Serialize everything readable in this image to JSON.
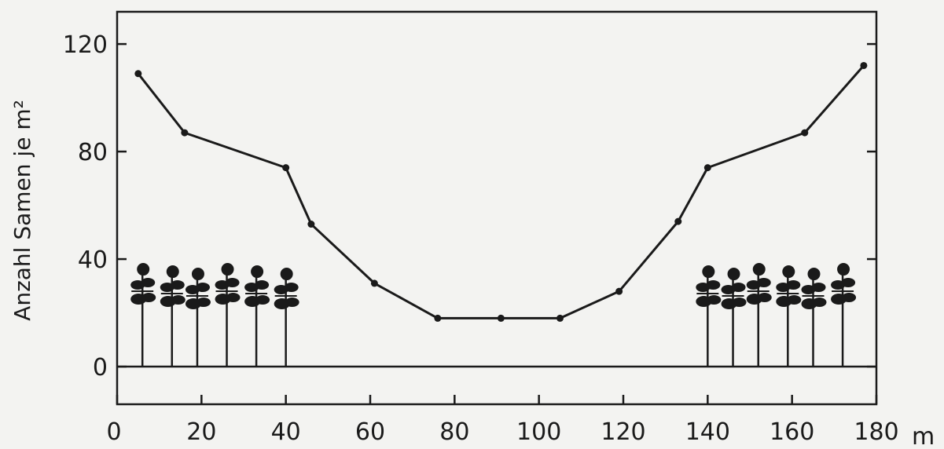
{
  "chart_data": {
    "type": "line",
    "title": "",
    "xlabel": "",
    "x_unit": "m",
    "ylabel": "Anzahl Samen je m²",
    "xlim": [
      0,
      180
    ],
    "ylim": [
      -14,
      132
    ],
    "x_ticks": [
      "0",
      "20",
      "40",
      "60",
      "80",
      "100",
      "120",
      "140",
      "160",
      "180"
    ],
    "y_ticks": [
      "0",
      "40",
      "80",
      "120"
    ],
    "grid": false,
    "series": [
      {
        "x": [
          5,
          16,
          40,
          46,
          61,
          76,
          91,
          105,
          119,
          133,
          140,
          163,
          177
        ],
        "y": [
          109,
          87,
          74,
          53,
          31,
          18,
          18,
          18,
          28,
          54,
          74,
          87,
          112
        ]
      }
    ],
    "tree_groups": [
      {
        "x": [
          6,
          13,
          19,
          26,
          33,
          40
        ]
      },
      {
        "x": [
          140,
          146,
          152,
          159,
          165,
          172
        ]
      }
    ]
  }
}
